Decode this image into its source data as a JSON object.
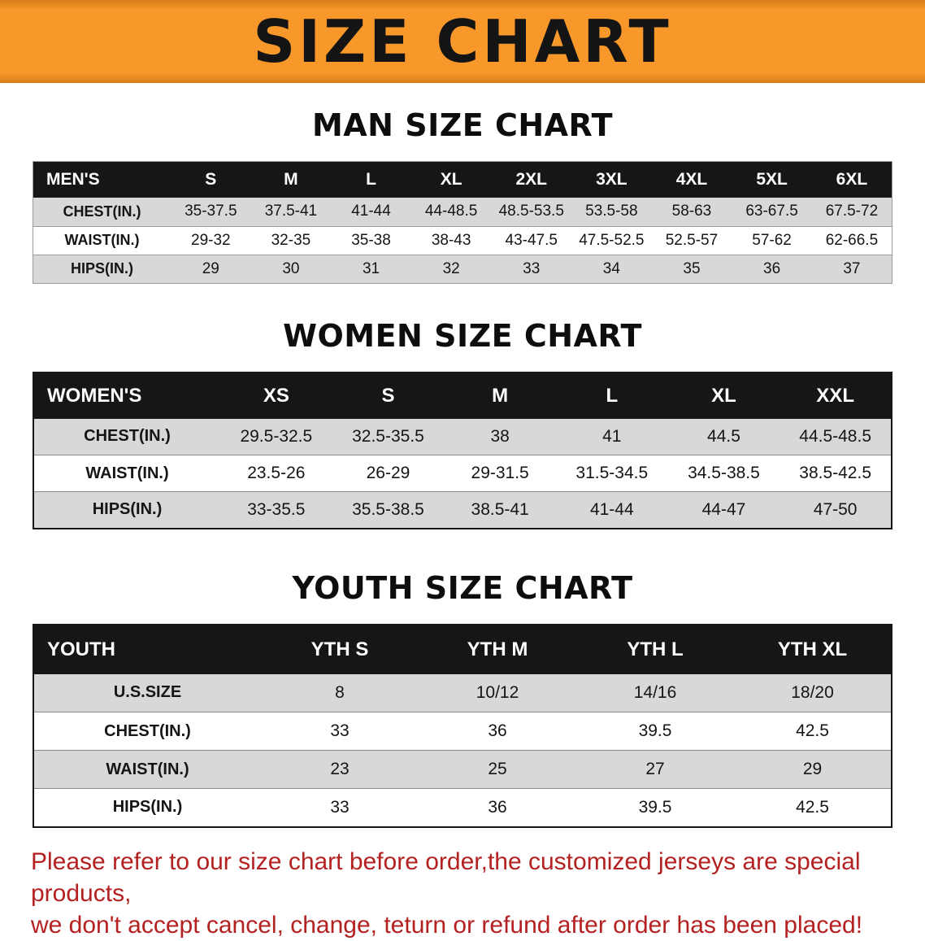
{
  "banner": {
    "title": "SIZE CHART"
  },
  "theme": {
    "banner_bg": "#F8921F",
    "header_bg": "#161616",
    "header_text": "#FFFFFF",
    "stripe_bg": "#D8D8D8",
    "footer_text": "#B42121"
  },
  "sections": [
    {
      "id": "men",
      "heading": "MAN SIZE CHART",
      "header_label": "MEN'S",
      "columns": [
        "S",
        "M",
        "L",
        "XL",
        "2XL",
        "3XL",
        "4XL",
        "5XL",
        "6XL"
      ],
      "rows": [
        {
          "label": "CHEST(IN.)",
          "values": [
            "35-37.5",
            "37.5-41",
            "41-44",
            "44-48.5",
            "48.5-53.5",
            "53.5-58",
            "58-63",
            "63-67.5",
            "67.5-72"
          ]
        },
        {
          "label": "WAIST(IN.)",
          "values": [
            "29-32",
            "32-35",
            "35-38",
            "38-43",
            "43-47.5",
            "47.5-52.5",
            "52.5-57",
            "57-62",
            "62-66.5"
          ]
        },
        {
          "label": "HIPS(IN.)",
          "values": [
            "29",
            "30",
            "31",
            "32",
            "33",
            "34",
            "35",
            "36",
            "37"
          ]
        }
      ]
    },
    {
      "id": "women",
      "heading": "WOMEN SIZE CHART",
      "header_label": "WOMEN'S",
      "columns": [
        "XS",
        "S",
        "M",
        "L",
        "XL",
        "XXL"
      ],
      "rows": [
        {
          "label": "CHEST(IN.)",
          "values": [
            "29.5-32.5",
            "32.5-35.5",
            "38",
            "41",
            "44.5",
            "44.5-48.5"
          ]
        },
        {
          "label": "WAIST(IN.)",
          "values": [
            "23.5-26",
            "26-29",
            "29-31.5",
            "31.5-34.5",
            "34.5-38.5",
            "38.5-42.5"
          ]
        },
        {
          "label": "HIPS(IN.)",
          "values": [
            "33-35.5",
            "35.5-38.5",
            "38.5-41",
            "41-44",
            "44-47",
            "47-50"
          ]
        }
      ]
    },
    {
      "id": "youth",
      "heading": "YOUTH SIZE CHART",
      "header_label": "YOUTH",
      "columns": [
        "YTH S",
        "YTH M",
        "YTH L",
        "YTH XL"
      ],
      "rows": [
        {
          "label": "U.S.SIZE",
          "values": [
            "8",
            "10/12",
            "14/16",
            "18/20"
          ]
        },
        {
          "label": "CHEST(IN.)",
          "values": [
            "33",
            "36",
            "39.5",
            "42.5"
          ]
        },
        {
          "label": "WAIST(IN.)",
          "values": [
            "23",
            "25",
            "27",
            "29"
          ]
        },
        {
          "label": "HIPS(IN.)",
          "values": [
            "33",
            "36",
            "39.5",
            "42.5"
          ]
        }
      ]
    }
  ],
  "footer": {
    "line1": "Please refer to our size chart before order,the customized jerseys are special products,",
    "line2": "we don't accept cancel, change, teturn or refund after order has been placed!"
  }
}
